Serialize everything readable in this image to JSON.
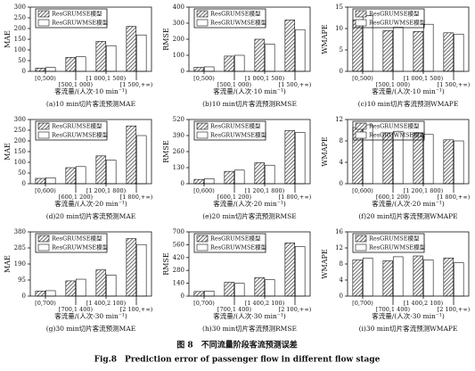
{
  "chart_data": [
    {
      "type": "bar",
      "title": "(a)10 min切片客流预测MAE",
      "ylabel": "MAE",
      "xlabel": "客流量/(人次·10 min⁻¹)",
      "categories": [
        "[0,500)",
        "[500,1 000)",
        "[1 000,1 500)",
        "[1 500,+∞)"
      ],
      "series": [
        {
          "name": "ResGRUMSE模型",
          "color": "#444444",
          "hatch": true,
          "values": [
            15,
            65,
            140,
            210
          ]
        },
        {
          "name": "ResGRUWMSE模型",
          "color": "#ffffff",
          "hatch": false,
          "values": [
            18,
            68,
            120,
            170
          ]
        }
      ],
      "ylim": [
        0,
        300
      ],
      "yticks": [
        0,
        50,
        100,
        150,
        200,
        250,
        300
      ]
    },
    {
      "type": "bar",
      "title": "(b)10 min切片客流预测RMSE",
      "ylabel": "RMSE",
      "xlabel": "客流量/(人次·10 min⁻¹)",
      "categories": [
        "[0,500)",
        "[500,1 000)",
        "[1 000,1 500)",
        "[1 500,+∞)"
      ],
      "series": [
        {
          "name": "ResGRUMSE模型",
          "color": "#444444",
          "hatch": true,
          "values": [
            25,
            95,
            200,
            320
          ]
        },
        {
          "name": "ResGRUWMSE模型",
          "color": "#ffffff",
          "hatch": false,
          "values": [
            28,
            100,
            170,
            260
          ]
        }
      ],
      "ylim": [
        0,
        400
      ],
      "yticks": [
        0,
        100,
        200,
        300,
        400
      ]
    },
    {
      "type": "bar",
      "title": "(c)10 min切片客流预测WMAPE",
      "ylabel": "WMAPE",
      "xlabel": "客流量/(人次·10 min⁻¹)",
      "categories": [
        "[0,500)",
        "[500,1 000)",
        "[1 000,1 500)",
        "[1 500,+∞)"
      ],
      "series": [
        {
          "name": "ResGRUMSE模型",
          "color": "#444444",
          "hatch": true,
          "values": [
            12,
            9.5,
            9.3,
            9
          ]
        },
        {
          "name": "ResGRUWMSE模型",
          "color": "#ffffff",
          "hatch": false,
          "values": [
            13,
            10.3,
            11,
            8.7
          ]
        }
      ],
      "ylim": [
        0,
        15
      ],
      "yticks": [
        0,
        5,
        10,
        15
      ]
    },
    {
      "type": "bar",
      "title": "(d)20 min切片客流预测MAE",
      "ylabel": "MAE",
      "xlabel": "客流量/(人次·20 min⁻¹)",
      "categories": [
        "[0,600)",
        "[600,1 200)",
        "[1 200,1 800)",
        "[1 800,+∞)"
      ],
      "series": [
        {
          "name": "ResGRUMSE模型",
          "color": "#444444",
          "hatch": true,
          "values": [
            25,
            75,
            130,
            270
          ]
        },
        {
          "name": "ResGRUWMSE模型",
          "color": "#ffffff",
          "hatch": false,
          "values": [
            28,
            80,
            110,
            225
          ]
        }
      ],
      "ylim": [
        0,
        300
      ],
      "yticks": [
        0,
        50,
        100,
        150,
        200,
        250,
        300
      ]
    },
    {
      "type": "bar",
      "title": "(e)20 min切片客流预测RMSE",
      "ylabel": "RMSE",
      "xlabel": "客流量/(人次·20 min⁻¹)",
      "categories": [
        "[0,600)",
        "[600,1 200)",
        "[1 200,1 800)",
        "[1 800,+∞)"
      ],
      "series": [
        {
          "name": "ResGRUMSE模型",
          "color": "#444444",
          "hatch": true,
          "values": [
            35,
            100,
            170,
            430
          ]
        },
        {
          "name": "ResGRUWMSE模型",
          "color": "#ffffff",
          "hatch": false,
          "values": [
            40,
            110,
            150,
            415
          ]
        }
      ],
      "ylim": [
        0,
        520
      ],
      "yticks": [
        0,
        130,
        260,
        390,
        520
      ]
    },
    {
      "type": "bar",
      "title": "(f)20 min切片客流预测WMAPE",
      "ylabel": "WMAPE",
      "xlabel": "客流量/(人次·20 min⁻¹)",
      "categories": [
        "[0,600)",
        "[600,1 200)",
        "[1 200,1 800)",
        "[1 800,+∞)"
      ],
      "series": [
        {
          "name": "ResGRUMSE模型",
          "color": "#444444",
          "hatch": true,
          "values": [
            10.5,
            9.5,
            9.5,
            8.2
          ]
        },
        {
          "name": "ResGRUWMSE模型",
          "color": "#ffffff",
          "hatch": false,
          "values": [
            11,
            9.8,
            9.2,
            8
          ]
        }
      ],
      "ylim": [
        0,
        12
      ],
      "yticks": [
        0,
        4,
        8,
        12
      ]
    },
    {
      "type": "bar",
      "title": "(g)30 min切片客流预测MAE",
      "ylabel": "MAE",
      "xlabel": "客流量/(人次·30 min⁻¹)",
      "categories": [
        "[0,700)",
        "[700,1 400)",
        "[1 400,2 100)",
        "[2 100,+∞)"
      ],
      "series": [
        {
          "name": "ResGRUMSE模型",
          "color": "#444444",
          "hatch": true,
          "values": [
            30,
            90,
            155,
            340
          ]
        },
        {
          "name": "ResGRUWMSE模型",
          "color": "#ffffff",
          "hatch": false,
          "values": [
            32,
            100,
            125,
            305
          ]
        }
      ],
      "ylim": [
        0,
        380
      ],
      "yticks": [
        0,
        95,
        190,
        285,
        380
      ]
    },
    {
      "type": "bar",
      "title": "(h)30 min切片客流预测RMSE",
      "ylabel": "RMSE",
      "xlabel": "客流量/(人次·30 min⁻¹)",
      "categories": [
        "[0,700)",
        "[700,1 400)",
        "[1 400,2 100)",
        "[2 100,+∞)"
      ],
      "series": [
        {
          "name": "ResGRUMSE模型",
          "color": "#444444",
          "hatch": true,
          "values": [
            50,
            150,
            200,
            580
          ]
        },
        {
          "name": "ResGRUWMSE模型",
          "color": "#ffffff",
          "hatch": false,
          "values": [
            55,
            140,
            180,
            540
          ]
        }
      ],
      "ylim": [
        0,
        700
      ],
      "yticks": [
        0,
        140,
        280,
        420,
        560,
        700
      ]
    },
    {
      "type": "bar",
      "title": "(i)30 min切片客流预测WMAPE",
      "ylabel": "WMAPE",
      "xlabel": "客流量/(人次·30 min⁻¹)",
      "categories": [
        "[0,700)",
        "[700,1 400)",
        "[1 400,2 100)",
        "[2 100,+∞)"
      ],
      "series": [
        {
          "name": "ResGRUMSE模型",
          "color": "#444444",
          "hatch": true,
          "values": [
            9,
            8.8,
            10,
            9.5
          ]
        },
        {
          "name": "ResGRUWMSE模型",
          "color": "#ffffff",
          "hatch": false,
          "values": [
            9.5,
            9.8,
            9,
            8.3
          ]
        }
      ],
      "ylim": [
        0,
        16
      ],
      "yticks": [
        0,
        4,
        8,
        12,
        16
      ]
    }
  ],
  "caption": {
    "zh": "图 8　不同流量阶段客流预测误差",
    "en": "Fig.8　Prediction error of passenger flow in different flow stage"
  }
}
